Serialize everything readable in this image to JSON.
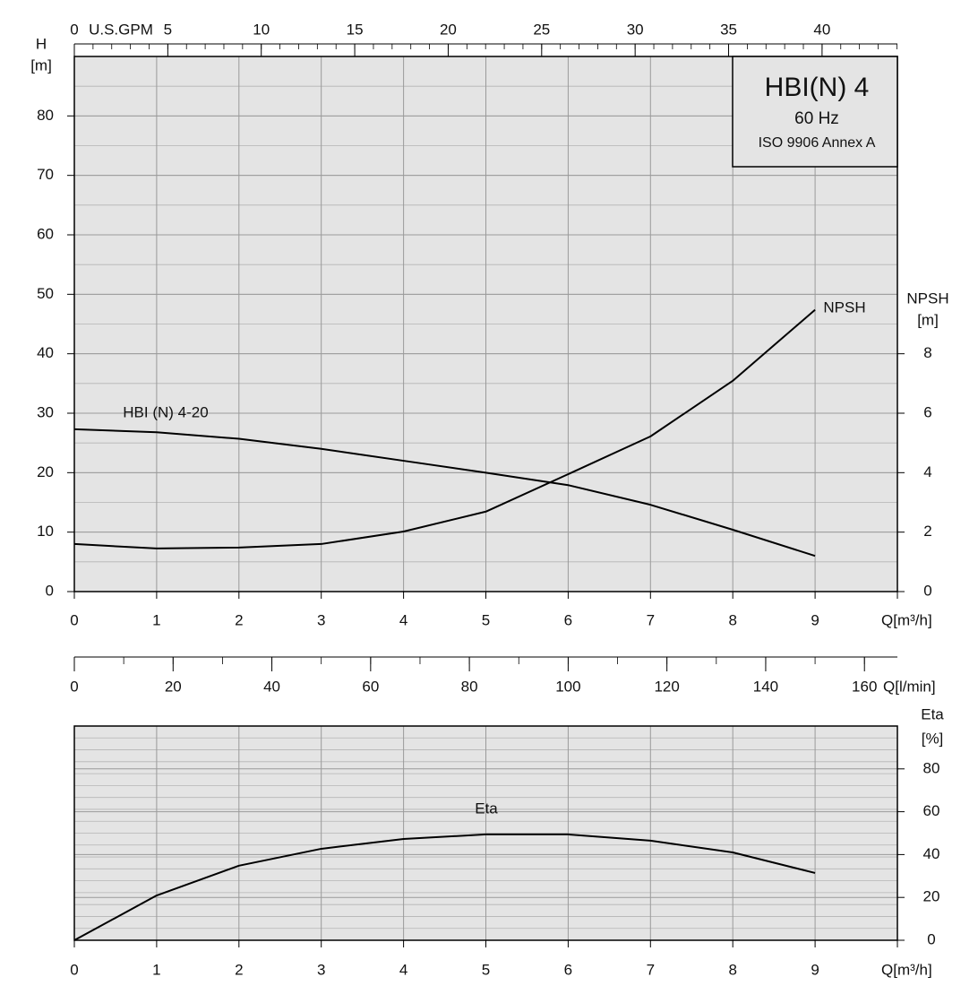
{
  "chart_data": [
    {
      "type": "line",
      "title": "HBI(N) 4",
      "subtitle": "60 Hz",
      "caption": "ISO 9906 Annex A",
      "x": [
        0,
        1,
        2,
        3,
        4,
        5,
        6,
        7,
        8,
        9
      ],
      "xlim": [
        0,
        10
      ],
      "xticks": [
        0,
        1,
        2,
        3,
        4,
        5,
        6,
        7,
        8,
        9
      ],
      "xlabel": "Q[m³/h]",
      "ylabel": "H",
      "yunit": "[m]",
      "ylim": [
        0,
        90
      ],
      "yticks": [
        0,
        10,
        20,
        30,
        40,
        50,
        60,
        70,
        80
      ],
      "y2label": "NPSH",
      "y2unit": "[m]",
      "y2lim": [
        0,
        18
      ],
      "y2ticks": [
        0,
        2,
        4,
        6,
        8
      ],
      "top_axis": {
        "label": "U.S.GPM",
        "lim": [
          0,
          44.03
        ],
        "ticks": [
          0,
          5,
          10,
          15,
          20,
          25,
          30,
          35,
          40
        ]
      },
      "bottom_axis": {
        "label": "Q[l/min]",
        "lim": [
          0,
          166.67
        ],
        "ticks": [
          0,
          20,
          40,
          60,
          80,
          100,
          120,
          140,
          160
        ]
      },
      "grid": true,
      "series": [
        {
          "name": "HBI (N) 4-20",
          "color": "#000000",
          "values": [
            27.3,
            26.8,
            25.7,
            24.0,
            22.0,
            20.0,
            17.9,
            14.6,
            10.4,
            6.0
          ]
        },
        {
          "name": "NPSH",
          "color": "#000000",
          "axis": "y2",
          "values": [
            1.6,
            1.45,
            1.48,
            1.6,
            2.02,
            2.69,
            3.95,
            5.22,
            7.09,
            9.48
          ]
        }
      ]
    },
    {
      "type": "line",
      "x": [
        0,
        1,
        2,
        3,
        4,
        5,
        6,
        7,
        8,
        9
      ],
      "xlim": [
        0,
        10
      ],
      "xticks": [
        0,
        1,
        2,
        3,
        4,
        5,
        6,
        7,
        8,
        9
      ],
      "xlabel": "Q[m³/h]",
      "ylabel": "Eta",
      "yunit": "[%]",
      "ylim": [
        0,
        100
      ],
      "yticks": [
        0,
        20,
        40,
        60,
        80
      ],
      "yaxis_side": "right",
      "grid": true,
      "series": [
        {
          "name": "Eta",
          "color": "#000000",
          "values": [
            0,
            20.9,
            34.8,
            42.7,
            47.3,
            49.4,
            49.4,
            46.5,
            41.0,
            31.4
          ]
        }
      ]
    }
  ]
}
